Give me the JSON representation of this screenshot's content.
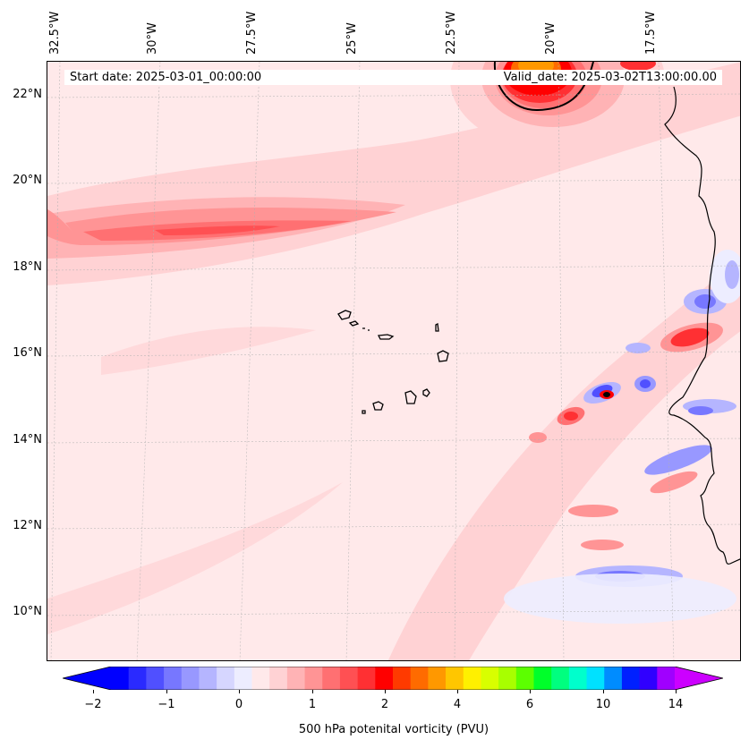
{
  "map": {
    "start_date_text": "Start date: 2025-03-01_00:00:00",
    "valid_date_text": "Valid_date: 2025-03-02T13:00:00.00",
    "longitude_labels": [
      "32.5°W",
      "30°W",
      "27.5°W",
      "25°W",
      "22.5°W",
      "20°W",
      "17.5°W"
    ],
    "latitude_labels": [
      "22°N",
      "20°N",
      "18°N",
      "16°N",
      "14°N",
      "12°N",
      "10°N"
    ],
    "field": "500 hPa potential vorticity"
  },
  "colorbar": {
    "label": "500 hPa potenital vorticity (PVU)",
    "tick_labels": [
      "−2",
      "−1",
      "0",
      "1",
      "2",
      "4",
      "6",
      "10",
      "14"
    ],
    "min_color": "#0000ff",
    "max_color": "#cc00ff",
    "colors": [
      "#0000ff",
      "#2a2aff",
      "#5050ff",
      "#7777ff",
      "#9898ff",
      "#b5b5ff",
      "#d6d6ff",
      "#ededff",
      "#ffe9ea",
      "#ffd2d4",
      "#ffb3b5",
      "#ff9495",
      "#ff7072",
      "#ff5053",
      "#ff3033",
      "#ff0000",
      "#ff3a00",
      "#ff6b00",
      "#ff9800",
      "#ffc600",
      "#fff000",
      "#d8ff00",
      "#a8ff00",
      "#5cff00",
      "#00ff2a",
      "#00ff7f",
      "#00ffcc",
      "#00e1ff",
      "#008cff",
      "#0020ff",
      "#3000ff",
      "#a000ff"
    ]
  }
}
